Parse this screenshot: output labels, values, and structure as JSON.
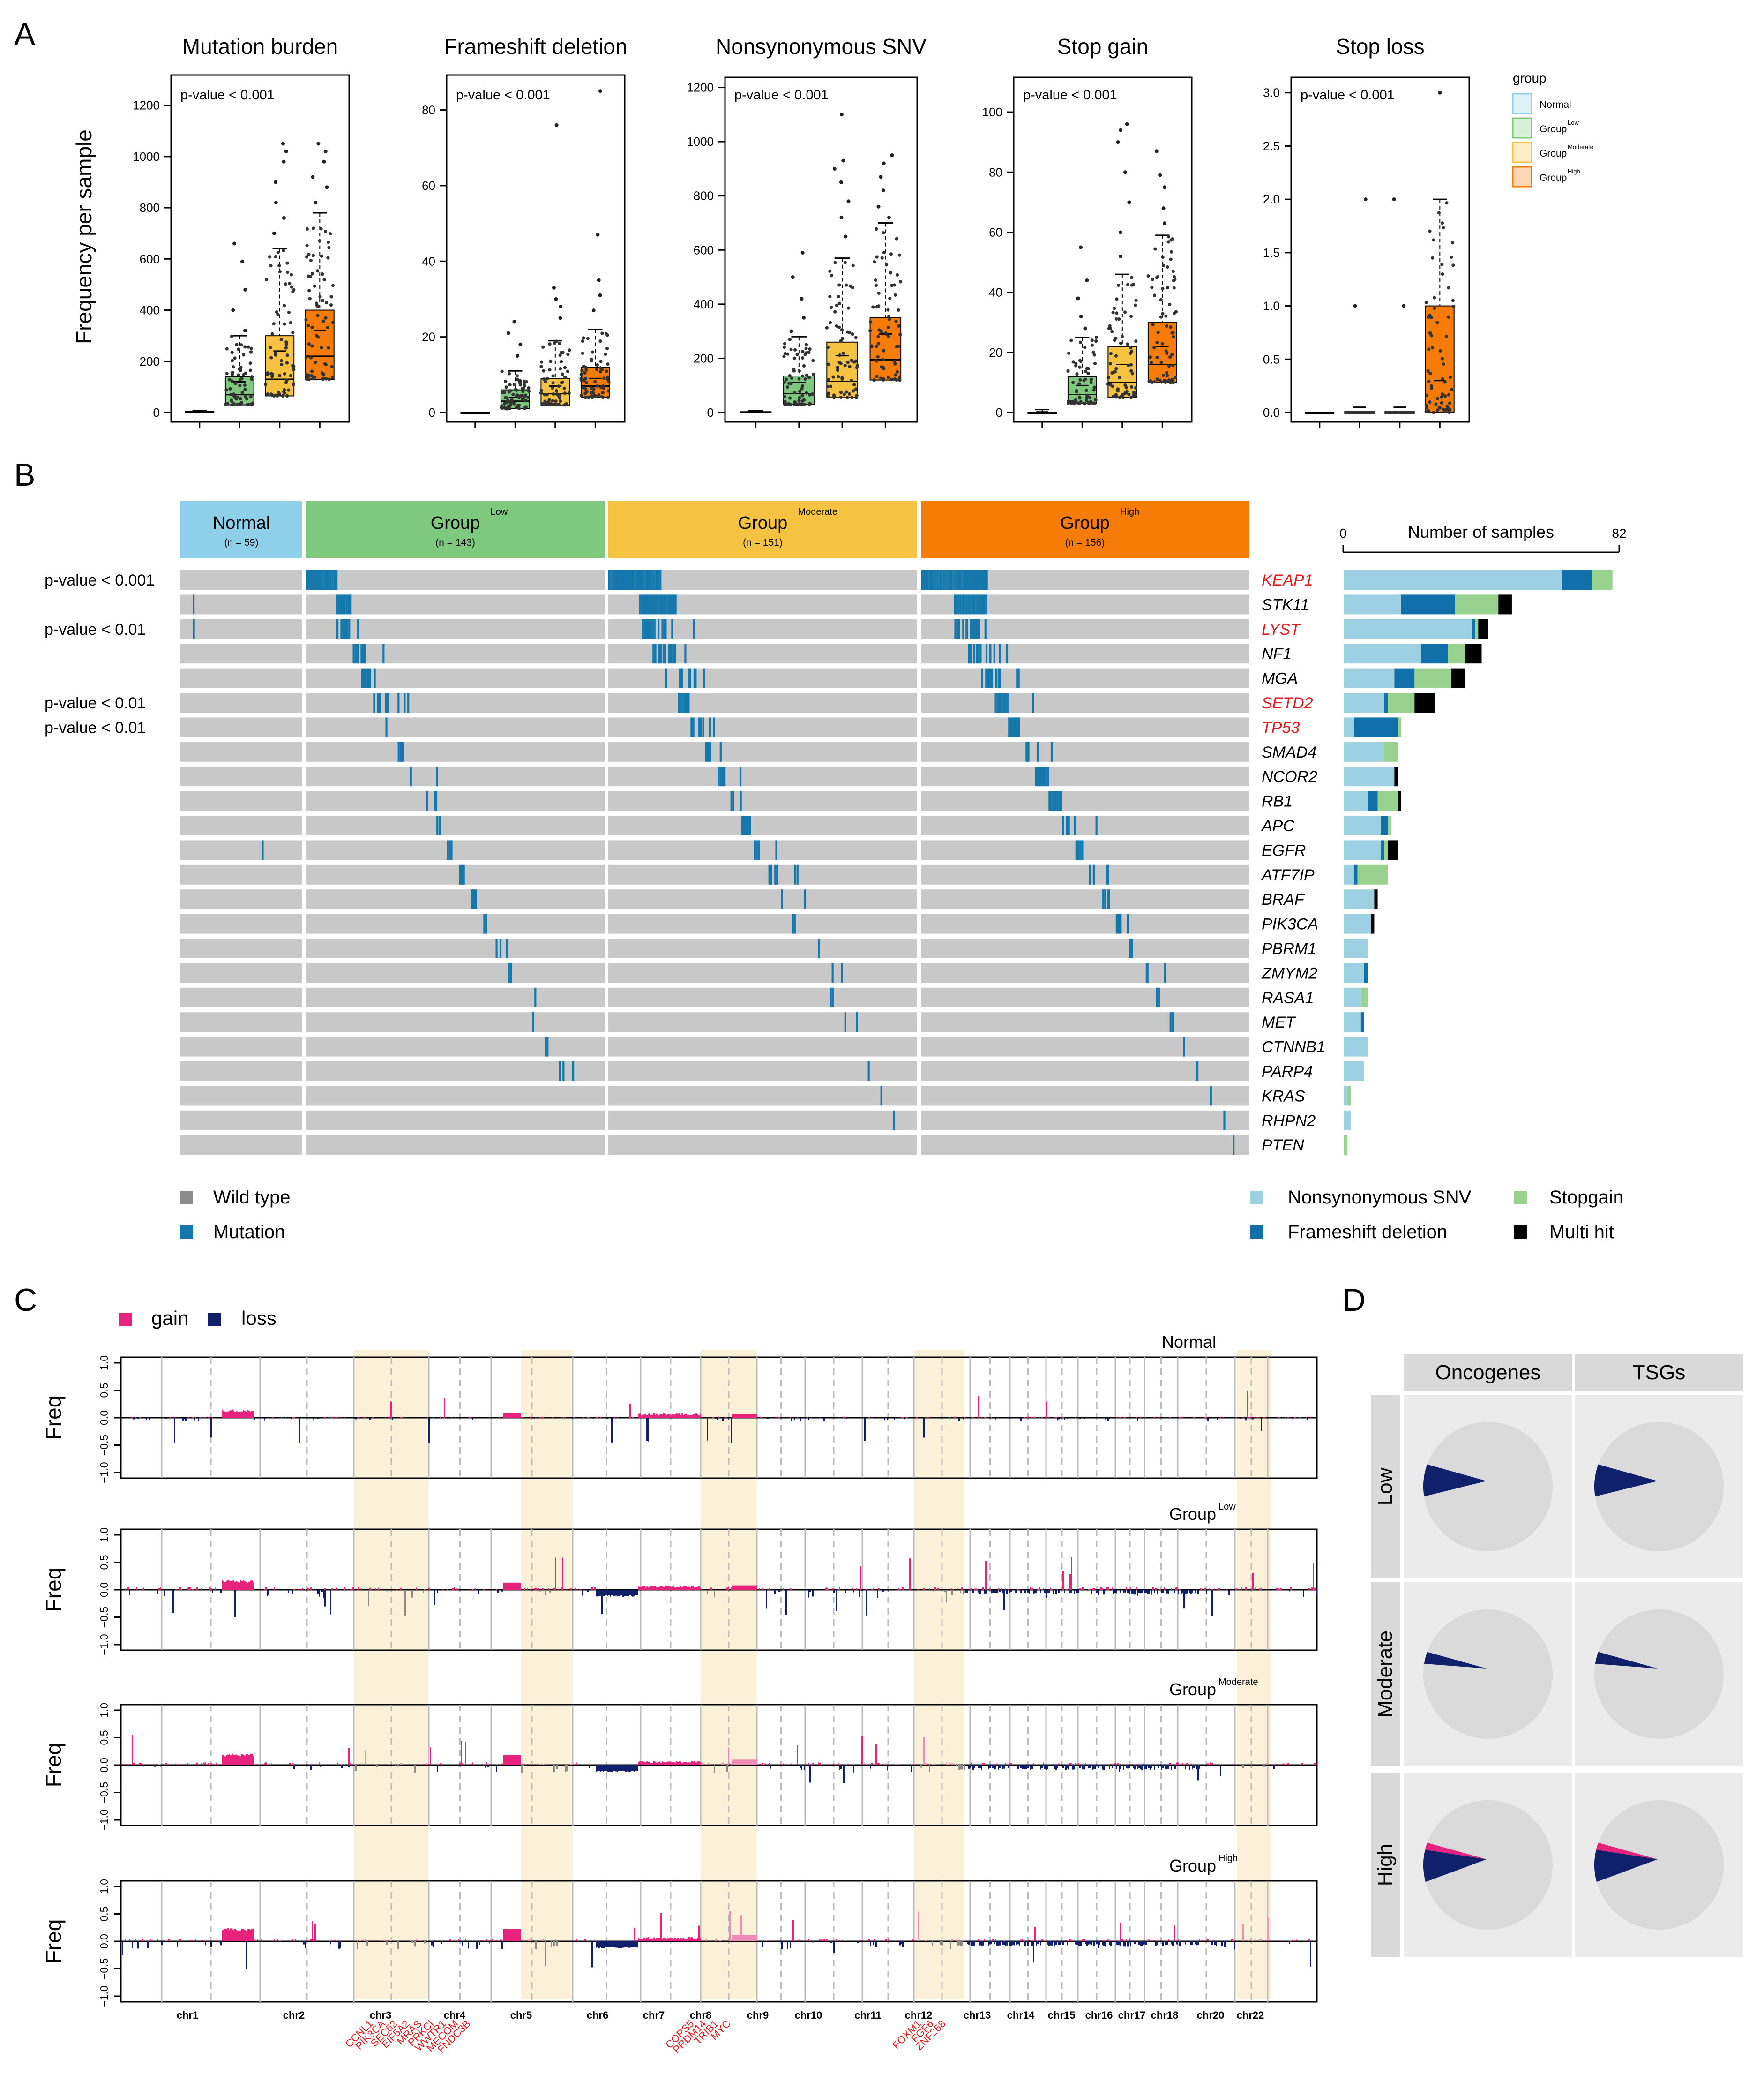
{
  "colors": {
    "normal": "#8ECFE9",
    "low": "#7FC97F",
    "moderate": "#F5C242",
    "high": "#F77B07",
    "mutation": "#1478AD",
    "wildtype": "#C8C8C8",
    "snv": "#9ED0E3",
    "frameshift": "#1170AA",
    "stopgain": "#99D18F",
    "multihit": "#000000",
    "gain": "#E8237D",
    "loss": "#10206B",
    "highlight": "#FBF0D8",
    "red_gene": "#E31A1C",
    "pie_bg": "#DADADA",
    "facet_bg": "#EBEBEB",
    "strip_bg": "#D9D9D9"
  },
  "panel_labels": {
    "a": "A",
    "b": "B",
    "c": "C",
    "d": "D"
  },
  "panel_a": {
    "ylabel": "Frequency per sample",
    "legend_title": "group",
    "legend_items": [
      {
        "base": "Normal",
        "sup": ""
      },
      {
        "base": "Group",
        "sup": "Low"
      },
      {
        "base": "Group",
        "sup": "Moderate"
      },
      {
        "base": "Group",
        "sup": "High"
      }
    ]
  },
  "chart_data": [
    {
      "type": "box",
      "title": "Mutation burden",
      "pvalue_label": "p-value < 0.001",
      "groups": [
        "Normal",
        "Low",
        "Moderate",
        "High"
      ],
      "ylim": [
        0,
        1300
      ],
      "yticks": [
        0,
        200,
        400,
        600,
        800,
        1000,
        1200
      ],
      "ytick_labels": [
        "0",
        "200",
        "400",
        "600",
        "800",
        "1000",
        "1200"
      ],
      "boxes": [
        {
          "q1": 0,
          "median": 2,
          "q3": 4,
          "lower": 0,
          "upper": 8,
          "mean": 3
        },
        {
          "q1": 30,
          "median": 70,
          "q3": 140,
          "lower": 0,
          "upper": 300,
          "mean": 120
        },
        {
          "q1": 65,
          "median": 130,
          "q3": 300,
          "lower": 0,
          "upper": 640,
          "mean": 240
        },
        {
          "q1": 130,
          "median": 220,
          "q3": 400,
          "lower": 0,
          "upper": 780,
          "mean": 320
        }
      ],
      "outliers": [
        [],
        [
          660,
          590,
          480,
          400,
          320
        ],
        [
          1050,
          1020,
          980,
          900,
          820,
          760,
          700
        ],
        [
          1050,
          1020,
          980,
          920,
          880,
          820
        ]
      ]
    },
    {
      "type": "box",
      "title": "Frameshift deletion",
      "pvalue_label": "p-value < 0.001",
      "groups": [
        "Normal",
        "Low",
        "Moderate",
        "High"
      ],
      "ylim": [
        0,
        88
      ],
      "yticks": [
        0,
        20,
        40,
        60,
        80
      ],
      "ytick_labels": [
        "0",
        "20",
        "40",
        "60",
        "80"
      ],
      "boxes": [
        {
          "q1": 0,
          "median": 0,
          "q3": 0,
          "lower": 0,
          "upper": 0,
          "mean": 0
        },
        {
          "q1": 1,
          "median": 3,
          "q3": 6,
          "lower": 0,
          "upper": 11,
          "mean": 4
        },
        {
          "q1": 2,
          "median": 5,
          "q3": 9,
          "lower": 0,
          "upper": 19,
          "mean": 7
        },
        {
          "q1": 4,
          "median": 7,
          "q3": 12,
          "lower": 0,
          "upper": 22,
          "mean": 9
        }
      ],
      "outliers": [
        [],
        [
          24,
          21,
          18,
          15
        ],
        [
          76,
          33,
          30,
          28,
          25
        ],
        [
          85,
          47,
          35,
          31,
          27
        ]
      ]
    },
    {
      "type": "box",
      "title": "Nonsynonymous SNV",
      "pvalue_label": "p-value < 0.001",
      "groups": [
        "Normal",
        "Low",
        "Moderate",
        "High"
      ],
      "ylim": [
        0,
        1220
      ],
      "yticks": [
        0,
        200,
        400,
        600,
        800,
        1000,
        1200
      ],
      "ytick_labels": [
        "0",
        "200",
        "400",
        "600",
        "800",
        "1000",
        "1200"
      ],
      "boxes": [
        {
          "q1": 0,
          "median": 1,
          "q3": 3,
          "lower": 0,
          "upper": 6,
          "mean": 2
        },
        {
          "q1": 30,
          "median": 70,
          "q3": 135,
          "lower": 0,
          "upper": 280,
          "mean": 110
        },
        {
          "q1": 55,
          "median": 115,
          "q3": 260,
          "lower": 0,
          "upper": 570,
          "mean": 210
        },
        {
          "q1": 120,
          "median": 195,
          "q3": 350,
          "lower": 0,
          "upper": 700,
          "mean": 290
        }
      ],
      "outliers": [
        [],
        [
          590,
          500,
          420,
          350,
          300
        ],
        [
          1100,
          930,
          900,
          850,
          780,
          720,
          650
        ],
        [
          950,
          920,
          870,
          820,
          760,
          720
        ]
      ]
    },
    {
      "type": "box",
      "title": "Stop gain",
      "pvalue_label": "p-value < 0.001",
      "groups": [
        "Normal",
        "Low",
        "Moderate",
        "High"
      ],
      "ylim": [
        0,
        110
      ],
      "yticks": [
        0,
        20,
        40,
        60,
        80,
        100
      ],
      "ytick_labels": [
        "0",
        "20",
        "40",
        "60",
        "80",
        "100"
      ],
      "boxes": [
        {
          "q1": 0,
          "median": 0,
          "q3": 0,
          "lower": 0,
          "upper": 1,
          "mean": 0.2
        },
        {
          "q1": 3,
          "median": 6,
          "q3": 12,
          "lower": 0,
          "upper": 25,
          "mean": 9
        },
        {
          "q1": 5,
          "median": 10,
          "q3": 22,
          "lower": 0,
          "upper": 46,
          "mean": 16
        },
        {
          "q1": 10,
          "median": 16,
          "q3": 30,
          "lower": 0,
          "upper": 59,
          "mean": 22
        }
      ],
      "outliers": [
        [],
        [
          55,
          44,
          38,
          32,
          28
        ],
        [
          96,
          94,
          90,
          80,
          70,
          60,
          52
        ],
        [
          87,
          79,
          75,
          68,
          63
        ]
      ]
    },
    {
      "type": "box",
      "title": "Stop loss",
      "pvalue_label": "p-value < 0.001",
      "groups": [
        "Normal",
        "Low",
        "Moderate",
        "High"
      ],
      "ylim": [
        0,
        3.1
      ],
      "yticks": [
        0,
        0.5,
        1.0,
        1.5,
        2.0,
        2.5,
        3.0
      ],
      "ytick_labels": [
        "0.0",
        "0.5",
        "1.0",
        "1.5",
        "2.0",
        "2.5",
        "3.0"
      ],
      "boxes": [
        {
          "q1": 0,
          "median": 0,
          "q3": 0,
          "lower": 0,
          "upper": 0,
          "mean": 0
        },
        {
          "q1": 0,
          "median": 0,
          "q3": 0,
          "lower": 0,
          "upper": 0,
          "mean": 0.05
        },
        {
          "q1": 0,
          "median": 0,
          "q3": 0,
          "lower": 0,
          "upper": 0,
          "mean": 0.05
        },
        {
          "q1": 0,
          "median": 0,
          "q3": 1.0,
          "lower": 0,
          "upper": 2.0,
          "mean": 0.3
        }
      ],
      "outliers": [
        [],
        [
          2.0,
          1.0
        ],
        [
          2.0,
          1.0
        ],
        [
          3.0
        ]
      ]
    },
    {
      "type": "heatmap",
      "title": "Oncoprint",
      "groups": [
        {
          "base": "Normal",
          "sup": "",
          "n_label": "(n = 59)",
          "n": 59
        },
        {
          "base": "Group",
          "sup": "Low",
          "n_label": "(n = 143)",
          "n": 143
        },
        {
          "base": "Group",
          "sup": "Moderate",
          "n_label": "(n = 151)",
          "n": 151
        },
        {
          "base": "Group",
          "sup": "High",
          "n_label": "(n = 156)",
          "n": 156
        }
      ],
      "genes": [
        "KEAP1",
        "STK11",
        "LYST",
        "NF1",
        "MGA",
        "SETD2",
        "TP53",
        "SMAD4",
        "NCOR2",
        "RB1",
        "APC",
        "EGFR",
        "ATF7IP",
        "BRAF",
        "PIK3CA",
        "PBRM1",
        "ZMYM2",
        "RASA1",
        "MET",
        "CTNNB1",
        "PARP4",
        "KRAS",
        "RHPN2",
        "PTEN"
      ],
      "red_genes": [
        "KEAP1",
        "LYST",
        "SETD2",
        "TP53"
      ],
      "pvalues": [
        {
          "gene_index": 0,
          "label": "p-value < 0.001"
        },
        {
          "gene_index": 2,
          "label": "p-value < 0.01"
        },
        {
          "gene_index": 5,
          "label": "p-value < 0.01"
        },
        {
          "gene_index": 6,
          "label": "p-value < 0.01"
        }
      ],
      "mutated_counts": [
        [
          0,
          16,
          27,
          34
        ],
        [
          1,
          8,
          19,
          17
        ],
        [
          1,
          7,
          14,
          13
        ],
        [
          0,
          8,
          12,
          12
        ],
        [
          0,
          6,
          9,
          10
        ],
        [
          0,
          8,
          6,
          8
        ],
        [
          0,
          1,
          7,
          6
        ],
        [
          0,
          3,
          4,
          4
        ],
        [
          0,
          2,
          5,
          7
        ],
        [
          0,
          3,
          3,
          7
        ],
        [
          0,
          2,
          5,
          5
        ],
        [
          1,
          3,
          4,
          4
        ],
        [
          0,
          3,
          6,
          4
        ],
        [
          0,
          3,
          2,
          4
        ],
        [
          0,
          2,
          2,
          4
        ],
        [
          0,
          3,
          1,
          2
        ],
        [
          0,
          2,
          2,
          3
        ],
        [
          0,
          1,
          2,
          2
        ],
        [
          0,
          1,
          2,
          2
        ],
        [
          0,
          2,
          0,
          1
        ],
        [
          0,
          3,
          1,
          1
        ],
        [
          0,
          0,
          1,
          1
        ],
        [
          0,
          0,
          1,
          1
        ],
        [
          0,
          0,
          0,
          1
        ]
      ],
      "legend": {
        "wildtype": "Wild type",
        "mutation": "Mutation"
      },
      "bar_axis": {
        "title": "Number of samples",
        "min": 0,
        "max": 82,
        "min_label": "0",
        "max_label": "82"
      },
      "bar_values": [
        {
          "snv": 65,
          "frameshift": 9,
          "stopgain": 6,
          "multihit": 0
        },
        {
          "snv": 17,
          "frameshift": 16,
          "stopgain": 13,
          "multihit": 4
        },
        {
          "snv": 38,
          "frameshift": 1,
          "stopgain": 1,
          "multihit": 3
        },
        {
          "snv": 23,
          "frameshift": 8,
          "stopgain": 5,
          "multihit": 5
        },
        {
          "snv": 15,
          "frameshift": 6,
          "stopgain": 11,
          "multihit": 4
        },
        {
          "snv": 12,
          "frameshift": 1,
          "stopgain": 8,
          "multihit": 6
        },
        {
          "snv": 3,
          "frameshift": 13,
          "stopgain": 1,
          "multihit": 0
        },
        {
          "snv": 12,
          "frameshift": 0,
          "stopgain": 4,
          "multihit": 0
        },
        {
          "snv": 15,
          "frameshift": 0,
          "stopgain": 0,
          "multihit": 1
        },
        {
          "snv": 7,
          "frameshift": 3,
          "stopgain": 6,
          "multihit": 1
        },
        {
          "snv": 11,
          "frameshift": 2,
          "stopgain": 1,
          "multihit": 0
        },
        {
          "snv": 11,
          "frameshift": 1,
          "stopgain": 1,
          "multihit": 3
        },
        {
          "snv": 3,
          "frameshift": 1,
          "stopgain": 9,
          "multihit": 0
        },
        {
          "snv": 9,
          "frameshift": 0,
          "stopgain": 0,
          "multihit": 1
        },
        {
          "snv": 8,
          "frameshift": 0,
          "stopgain": 0,
          "multihit": 1
        },
        {
          "snv": 7,
          "frameshift": 0,
          "stopgain": 0,
          "multihit": 0
        },
        {
          "snv": 6,
          "frameshift": 1,
          "stopgain": 0,
          "multihit": 0
        },
        {
          "snv": 5,
          "frameshift": 0,
          "stopgain": 2,
          "multihit": 0
        },
        {
          "snv": 5,
          "frameshift": 1,
          "stopgain": 0,
          "multihit": 0
        },
        {
          "snv": 7,
          "frameshift": 0,
          "stopgain": 0,
          "multihit": 0
        },
        {
          "snv": 6,
          "frameshift": 0,
          "stopgain": 0,
          "multihit": 0
        },
        {
          "snv": 1,
          "frameshift": 0,
          "stopgain": 1,
          "multihit": 0
        },
        {
          "snv": 2,
          "frameshift": 0,
          "stopgain": 0,
          "multihit": 0
        },
        {
          "snv": 0,
          "frameshift": 0,
          "stopgain": 1,
          "multihit": 0
        }
      ],
      "bar_legend": {
        "snv": "Nonsynonymous SNV",
        "frameshift": "Frameshift deletion",
        "stopgain": "Stopgain",
        "multihit": "Multi hit"
      }
    },
    {
      "type": "area",
      "title": "Copy number frequency",
      "legend": {
        "gain": "gain",
        "loss": "loss"
      },
      "ylabel": "Freq",
      "ylim": [
        -1.0,
        1.0
      ],
      "ytick_labels": [
        "1.0",
        "0.5",
        "0.0",
        "−0.5",
        "−1.0"
      ],
      "tracks": [
        {
          "base": "Normal",
          "sup": ""
        },
        {
          "base": "Group",
          "sup": "Low"
        },
        {
          "base": "Group",
          "sup": "Moderate"
        },
        {
          "base": "Group",
          "sup": "High"
        }
      ],
      "chromosomes": [
        "chr1",
        "chr2",
        "chr3",
        "chr4",
        "chr5",
        "chr6",
        "chr7",
        "chr8",
        "chr9",
        "chr10",
        "chr11",
        "chr12",
        "chr13",
        "chr14",
        "chr15",
        "chr16",
        "chr17",
        "chr18",
        "chr20",
        "chr22"
      ],
      "highlight_chromosomes": [
        "chr3",
        "chr5",
        "chr8",
        "chr12",
        "chr22"
      ],
      "gene_labels": [
        {
          "chromosome": "chr3",
          "genes": [
            "CCNL1",
            "PIK3CA",
            "SEC62",
            "EIF5A2",
            "MRAS",
            "PRKCI",
            "WWTR1",
            "MECOM",
            "FNDC3B"
          ]
        },
        {
          "chromosome": "chr8",
          "genes": [
            "COPS5",
            "PRDM14",
            "TRIB1",
            "MYC"
          ]
        },
        {
          "chromosome": "chr12",
          "genes": [
            "FOXM1",
            "FGF6",
            "ZNF268"
          ]
        }
      ]
    },
    {
      "type": "pie",
      "title": "Oncogenes and TSGs",
      "columns": [
        "Oncogenes",
        "TSGs"
      ],
      "rows": [
        "Low",
        "Moderate",
        "High"
      ],
      "slices": [
        [
          {
            "loss": 0.08,
            "gain": 0.0
          },
          {
            "loss": 0.08,
            "gain": 0.0
          }
        ],
        [
          {
            "loss": 0.03,
            "gain": 0.0
          },
          {
            "loss": 0.03,
            "gain": 0.0
          }
        ],
        [
          {
            "loss": 0.08,
            "gain": 0.018
          },
          {
            "loss": 0.08,
            "gain": 0.018
          }
        ]
      ]
    }
  ]
}
